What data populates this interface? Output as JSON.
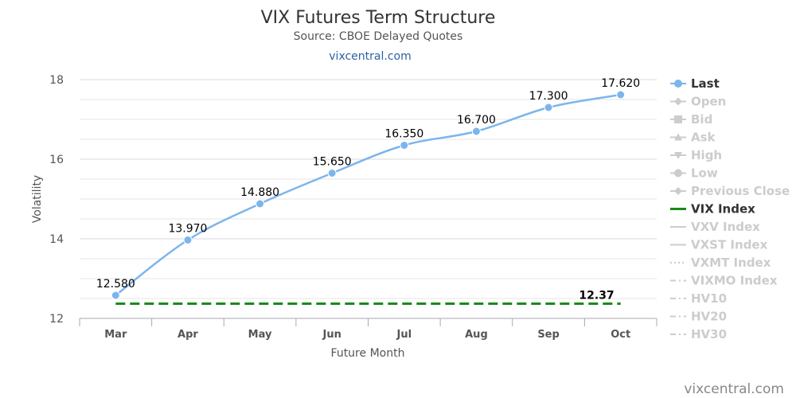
{
  "chart_data": {
    "type": "line",
    "title": "VIX Futures Term Structure",
    "subtitle": "Source: CBOE Delayed Quotes",
    "site_link": "vixcentral.com",
    "credits": "vixcentral.com",
    "xlabel": "Future Month",
    "ylabel": "Volatility",
    "categories": [
      "Mar",
      "Apr",
      "May",
      "Jun",
      "Jul",
      "Aug",
      "Sep",
      "Oct"
    ],
    "ylim": [
      12,
      18
    ],
    "yticks": [
      "12",
      "14",
      "16",
      "18"
    ],
    "grid": true,
    "legend_position": "right",
    "series": [
      {
        "name": "Last",
        "color": "#7cb5ec",
        "values": [
          12.58,
          13.97,
          14.88,
          15.65,
          16.35,
          16.7,
          17.3,
          17.62
        ],
        "labels": [
          "12.580",
          "13.970",
          "14.880",
          "15.650",
          "16.350",
          "16.700",
          "17.300",
          "17.620"
        ]
      },
      {
        "name": "VIX Index",
        "color": "#1a8a1a",
        "values": [
          12.37,
          12.37,
          12.37,
          12.37,
          12.37,
          12.37,
          12.37,
          12.37
        ],
        "end_label": "12.37"
      }
    ],
    "legend": [
      {
        "name": "Last",
        "symbol": "circle-line",
        "active": true,
        "color": "#7cb5ec"
      },
      {
        "name": "Open",
        "symbol": "diamond",
        "active": false
      },
      {
        "name": "Bid",
        "symbol": "square",
        "active": false
      },
      {
        "name": "Ask",
        "symbol": "triangle",
        "active": false
      },
      {
        "name": "High",
        "symbol": "triangle-down",
        "active": false
      },
      {
        "name": "Low",
        "symbol": "circle",
        "active": false
      },
      {
        "name": "Previous Close",
        "symbol": "diamond",
        "active": false
      },
      {
        "name": "VIX Index",
        "symbol": "line",
        "active": true,
        "color": "#1a8a1a"
      },
      {
        "name": "VXV Index",
        "symbol": "line",
        "active": false
      },
      {
        "name": "VXST Index",
        "symbol": "line",
        "active": false
      },
      {
        "name": "VXMT Index",
        "symbol": "dotted",
        "active": false
      },
      {
        "name": "VIXMO Index",
        "symbol": "dashdot",
        "active": false
      },
      {
        "name": "HV10",
        "symbol": "dashdot",
        "active": false
      },
      {
        "name": "HV20",
        "symbol": "dashdot",
        "active": false
      },
      {
        "name": "HV30",
        "symbol": "dashdot",
        "active": false
      }
    ]
  }
}
